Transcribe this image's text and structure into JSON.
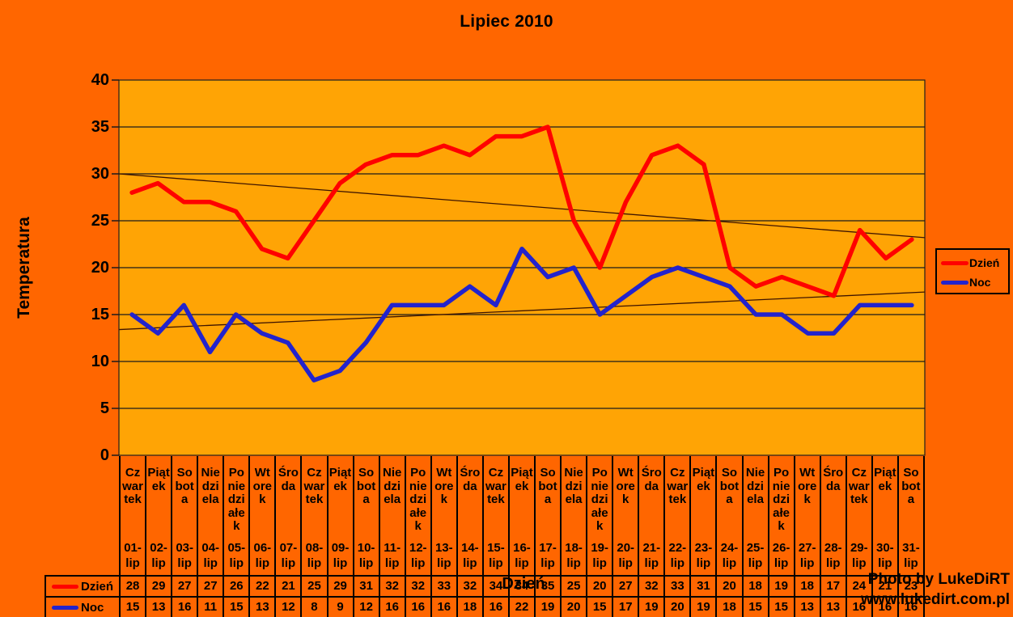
{
  "title": "Lipiec 2010",
  "watermark": {
    "line1": "Photo by LukeDiRT",
    "line2": "www.lukedirt.com.pl"
  },
  "colors": {
    "background": "#FF6600",
    "plot_background": "#FFA405",
    "series_day": "#FF0000",
    "series_night": "#2323CC",
    "grid": "#1A1A1A",
    "trendline": "#3D1400",
    "text": "#000000"
  },
  "legend": {
    "items": [
      {
        "label": "Dzień",
        "color": "#FF0000"
      },
      {
        "label": "Noc",
        "color": "#2323CC"
      }
    ]
  },
  "chart_data": {
    "type": "line",
    "title": "Lipiec 2010",
    "xlabel": "Dzień",
    "ylabel": "Temperatura",
    "ylim": [
      0,
      40
    ],
    "y_ticks": [
      0,
      5,
      10,
      15,
      20,
      25,
      30,
      35,
      40
    ],
    "grid": true,
    "legend_position": "right",
    "categories_day_names": [
      "Czwartek",
      "Piątek",
      "Sobota",
      "Niedziela",
      "Poniedziałek",
      "Wtorek",
      "Środa",
      "Czwartek",
      "Piątek",
      "Sobota",
      "Niedziela",
      "Poniedziałek",
      "Wtorek",
      "Środa",
      "Czwartek",
      "Piątek",
      "Sobota",
      "Niedziela",
      "Poniedziałek",
      "Wtorek",
      "Środa",
      "Czwartek",
      "Piątek",
      "Sobota",
      "Niedziela",
      "Poniedziałek",
      "Wtorek",
      "Środa",
      "Czwartek",
      "Piątek",
      "Sobota"
    ],
    "categories_dates": [
      "01-lip",
      "02-lip",
      "03-lip",
      "04-lip",
      "05-lip",
      "06-lip",
      "07-lip",
      "08-lip",
      "09-lip",
      "10-lip",
      "11-lip",
      "12-lip",
      "13-lip",
      "14-lip",
      "15-lip",
      "16-lip",
      "17-lip",
      "18-lip",
      "19-lip",
      "20-lip",
      "21-lip",
      "22-lip",
      "23-lip",
      "24-lip",
      "25-lip",
      "26-lip",
      "27-lip",
      "28-lip",
      "29-lip",
      "30-lip",
      "31-lip"
    ],
    "series": [
      {
        "name": "Dzień",
        "color": "#FF0000",
        "values": [
          28,
          29,
          27,
          27,
          26,
          22,
          21,
          25,
          29,
          31,
          32,
          32,
          33,
          32,
          34,
          34,
          35,
          25,
          20,
          27,
          32,
          33,
          31,
          20,
          18,
          19,
          18,
          17,
          24,
          21,
          23
        ]
      },
      {
        "name": "Noc",
        "color": "#2323CC",
        "values": [
          15,
          13,
          16,
          11,
          15,
          13,
          12,
          8,
          9,
          12,
          16,
          16,
          16,
          18,
          16,
          22,
          19,
          20,
          15,
          17,
          19,
          20,
          19,
          18,
          15,
          15,
          13,
          13,
          16,
          16,
          16
        ]
      }
    ],
    "trendlines": [
      {
        "series": "Dzień",
        "start_value": 30.0,
        "end_value": 23.2
      },
      {
        "series": "Noc",
        "start_value": 13.4,
        "end_value": 17.4
      }
    ]
  }
}
